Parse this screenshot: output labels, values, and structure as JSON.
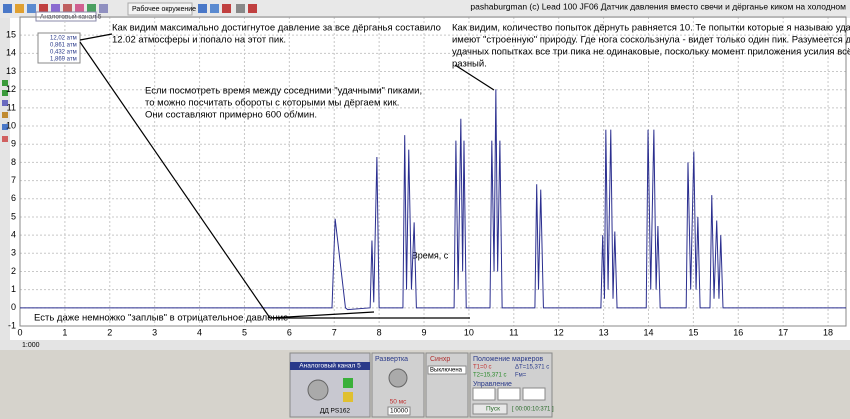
{
  "window": {
    "title": "pashaburgman (c) Lead 100 JF06   Датчик давления вместо свечи и дёрганье киком  на холодном",
    "toolbar_label": "Рабочее окружение",
    "channel_tab": "Аналоговый канал 5",
    "status_page": "1:000"
  },
  "chart_data": {
    "type": "line",
    "x_label": "Время, с",
    "xlim": [
      0,
      18.4
    ],
    "xticks": [
      0,
      1,
      2,
      3,
      4,
      5,
      6,
      7,
      8,
      9,
      10,
      11,
      12,
      13,
      14,
      15,
      16,
      17,
      18
    ],
    "ylim": [
      -1,
      16
    ],
    "yticks": [
      -1,
      0,
      1,
      2,
      3,
      4,
      5,
      6,
      7,
      8,
      9,
      10,
      11,
      12,
      13,
      14,
      15
    ],
    "grid": true,
    "x": [
      0,
      6.95,
      7.02,
      7.25,
      7.3,
      7.8,
      7.84,
      7.88,
      7.95,
      8.0,
      8.53,
      8.57,
      8.61,
      8.66,
      8.72,
      8.78,
      8.83,
      9.67,
      9.71,
      9.76,
      9.82,
      9.86,
      9.89,
      9.94,
      10.47,
      10.51,
      10.56,
      10.6,
      10.64,
      10.69,
      10.74,
      11.47,
      11.51,
      11.55,
      11.6,
      11.66,
      12.94,
      12.98,
      13.02,
      13.05,
      13.1,
      13.16,
      13.21,
      13.25,
      13.3,
      13.95,
      13.99,
      14.05,
      14.12,
      14.17,
      14.21,
      14.26,
      14.84,
      14.88,
      14.94,
      15.01,
      15.06,
      15.1,
      15.15,
      15.37,
      15.41,
      15.46,
      15.52,
      15.57,
      15.61,
      15.66,
      18.4
    ],
    "series": [
      {
        "color": "#2b2f8f",
        "values": [
          0,
          0,
          4.9,
          0,
          -0.1,
          0,
          3.7,
          0.3,
          8.3,
          0,
          0,
          9.5,
          1,
          8.7,
          1,
          4.7,
          0,
          0,
          9.2,
          1,
          10.4,
          2,
          9.2,
          0,
          0,
          9.2,
          2,
          12.02,
          2,
          9.2,
          0,
          0,
          6.8,
          1,
          6.5,
          0,
          0,
          4.0,
          0.5,
          9.8,
          1,
          9.8,
          0.5,
          4.2,
          0,
          0,
          9.8,
          1,
          9.8,
          1,
          4.5,
          0,
          0,
          8.0,
          1,
          8.6,
          1,
          5.0,
          0,
          0,
          6.2,
          0.5,
          4.8,
          0.5,
          4.0,
          0,
          0
        ]
      }
    ]
  },
  "cursor_readout": [
    "12,02 атм",
    "0,861 атм",
    "0,432 атм",
    "1,869 атм"
  ],
  "annotations": [
    {
      "lines": [
        "Как видим максимально достигнутое давление за все дёрганья составило",
        "12.02 атмосферы и попало на этот пик."
      ]
    },
    {
      "lines": [
        "Как видим, количество попыток дёрнуть равняется 10. Те попытки которые я называю удачными",
        "имеют \"строенную\" природу. Где нога соскользнула - видет только один пик. Разумеется даже в",
        "удачных попытках все три пика не одинаковые, поскольку момент приложения усилия всё равно",
        "разный."
      ]
    },
    {
      "lines": [
        "Если посмотреть время между соседними \"удачными\" пиками,",
        "то можно посчитать обороты с которыми мы дёргаем кик.",
        "Они составляют примерно 600 об/мин."
      ]
    },
    {
      "lines": [
        "Есть даже немножко \"заплыв\" в отрицательное давление"
      ]
    }
  ],
  "panel": {
    "channel": "Аналоговый канал 5",
    "sensor": "ДД PS162",
    "sweep": "Развертка",
    "sweep_value": "50 мс",
    "samples": "10000",
    "sync": "Синхр",
    "sync_mode": "Выключена",
    "markers": "Положение маркеров",
    "t1": "T1=0 с",
    "t2": "T2=15,371 с",
    "dt": "ΔT=15,371 с",
    "fm": "Fм=",
    "control": "Управление",
    "start": "Пуск",
    "timer": "[ 00:00:10:371 ]"
  }
}
